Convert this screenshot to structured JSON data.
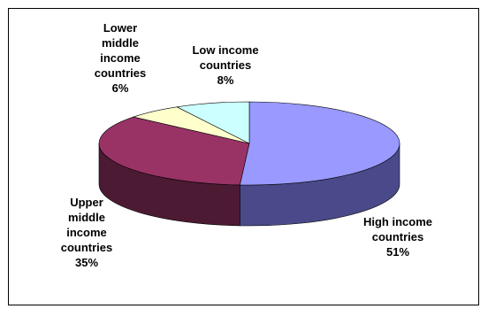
{
  "chart_data": {
    "type": "pie",
    "title": "",
    "style": "3d-exploded-none",
    "slices": [
      {
        "label": "High income countries",
        "display": "High income\ncountries\n51%",
        "value": 51,
        "color": "#9999ff",
        "side": "#4a4a8a"
      },
      {
        "label": "Upper middle income countries",
        "display": "Upper\nmiddle\nincome\ncountries\n35%",
        "value": 35,
        "color": "#993366",
        "side": "#4d1a33"
      },
      {
        "label": "Lower middle income countries",
        "display": "Lower\nmiddle\nincome\ncountries\n6%",
        "value": 6,
        "color": "#ffffcc",
        "side": "#8a8a6a"
      },
      {
        "label": "Low income countries",
        "display": "Low income\ncountries\n8%",
        "value": 8,
        "color": "#ccffff",
        "side": "#6a8a8a"
      }
    ],
    "legend": "none"
  }
}
